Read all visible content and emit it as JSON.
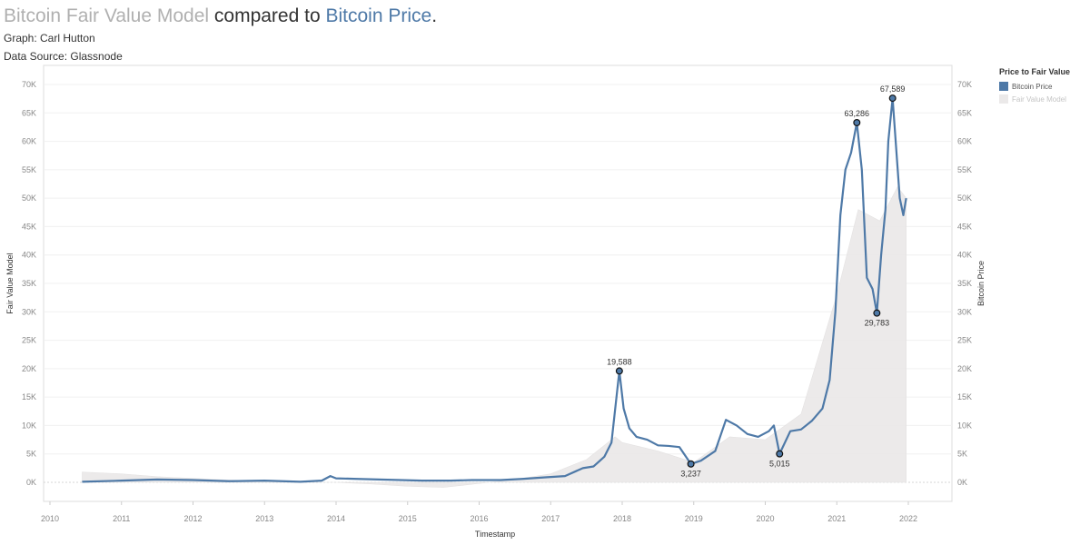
{
  "header": {
    "title_part1": "Bitcoin Fair Value Model",
    "title_part2": " compared to ",
    "title_part3": "Bitcoin Price",
    "title_part4": ".",
    "graph_credit": "Graph: Carl Hutton",
    "data_source": "Data Source: Glassnode"
  },
  "legend": {
    "title": "Price to Fair Value",
    "items": [
      {
        "label": "Bitcoin Price",
        "color": "#4e79a7"
      },
      {
        "label": "Fair Value Model",
        "color": "#ebe9e9"
      }
    ]
  },
  "colors": {
    "price": "#4e79a7",
    "fair_value": "#ebe9e9",
    "title_grey": "#b0b0b0",
    "axis_text": "#888888"
  },
  "chart_data": {
    "type": "area",
    "xlabel": "Timestamp",
    "ylabel_left": "Fair Value Model",
    "ylabel_right": "Bitcoin Price",
    "xlim": [
      2010,
      2022.6
    ],
    "ylim": [
      0,
      72000
    ],
    "x_ticks": [
      "2010",
      "2011",
      "2012",
      "2013",
      "2014",
      "2015",
      "2016",
      "2017",
      "2018",
      "2019",
      "2020",
      "2021",
      "2022"
    ],
    "y_ticks": [
      "0K",
      "5K",
      "10K",
      "15K",
      "20K",
      "25K",
      "30K",
      "35K",
      "40K",
      "45K",
      "50K",
      "55K",
      "60K",
      "65K",
      "70K"
    ],
    "grid": true,
    "legend_position": "right",
    "series": [
      {
        "name": "Bitcoin Price",
        "style": "line",
        "x": [
          2010.45,
          2011.0,
          2011.5,
          2012.0,
          2012.5,
          2013.0,
          2013.25,
          2013.5,
          2013.8,
          2013.92,
          2014.0,
          2014.3,
          2014.6,
          2014.9,
          2015.2,
          2015.6,
          2015.9,
          2016.3,
          2016.6,
          2016.95,
          2017.2,
          2017.45,
          2017.6,
          2017.75,
          2017.85,
          2017.96,
          2018.02,
          2018.1,
          2018.2,
          2018.35,
          2018.5,
          2018.65,
          2018.8,
          2018.96,
          2019.1,
          2019.3,
          2019.45,
          2019.6,
          2019.75,
          2019.9,
          2020.05,
          2020.12,
          2020.2,
          2020.35,
          2020.5,
          2020.65,
          2020.8,
          2020.9,
          2020.98,
          2021.05,
          2021.12,
          2021.2,
          2021.28,
          2021.35,
          2021.42,
          2021.5,
          2021.56,
          2021.62,
          2021.68,
          2021.72,
          2021.78,
          2021.84,
          2021.88,
          2021.93,
          2021.97
        ],
        "y": [
          100,
          300,
          500,
          400,
          200,
          300,
          200,
          100,
          300,
          1100,
          700,
          600,
          500,
          400,
          300,
          300,
          400,
          400,
          600,
          900,
          1100,
          2500,
          2800,
          4500,
          7000,
          19588,
          13000,
          9500,
          8000,
          7500,
          6500,
          6400,
          6200,
          3237,
          3800,
          5500,
          11000,
          10000,
          8500,
          8000,
          9000,
          10000,
          5015,
          9000,
          9300,
          10800,
          13000,
          18000,
          30000,
          47000,
          55000,
          58000,
          63286,
          55000,
          36000,
          34000,
          29783,
          40000,
          48000,
          60000,
          67589,
          57000,
          50000,
          47000,
          50000
        ]
      },
      {
        "name": "Fair Value Model",
        "style": "area",
        "x": [
          2010.45,
          2011.0,
          2011.5,
          2012.0,
          2012.5,
          2013.0,
          2013.5,
          2014.0,
          2014.5,
          2015.0,
          2015.5,
          2016.0,
          2016.5,
          2017.0,
          2017.5,
          2017.9,
          2018.0,
          2018.5,
          2019.0,
          2019.5,
          2020.0,
          2020.5,
          2021.0,
          2021.3,
          2021.6,
          2021.85,
          2021.97
        ],
        "y": [
          1800,
          1500,
          1000,
          700,
          400,
          200,
          0,
          0,
          -300,
          -700,
          -900,
          -200,
          500,
          1500,
          4000,
          8000,
          7000,
          5500,
          3500,
          8000,
          7500,
          12000,
          33000,
          48000,
          46000,
          52000,
          50000
        ]
      }
    ],
    "annotations": [
      {
        "x": 2017.96,
        "y": 19588,
        "label": "19,588",
        "position": "above"
      },
      {
        "x": 2018.96,
        "y": 3237,
        "label": "3,237",
        "position": "below"
      },
      {
        "x": 2020.2,
        "y": 5015,
        "label": "5,015",
        "position": "below"
      },
      {
        "x": 2021.28,
        "y": 63286,
        "label": "63,286",
        "position": "above"
      },
      {
        "x": 2021.56,
        "y": 29783,
        "label": "29,783",
        "position": "below"
      },
      {
        "x": 2021.78,
        "y": 67589,
        "label": "67,589",
        "position": "above"
      }
    ]
  }
}
